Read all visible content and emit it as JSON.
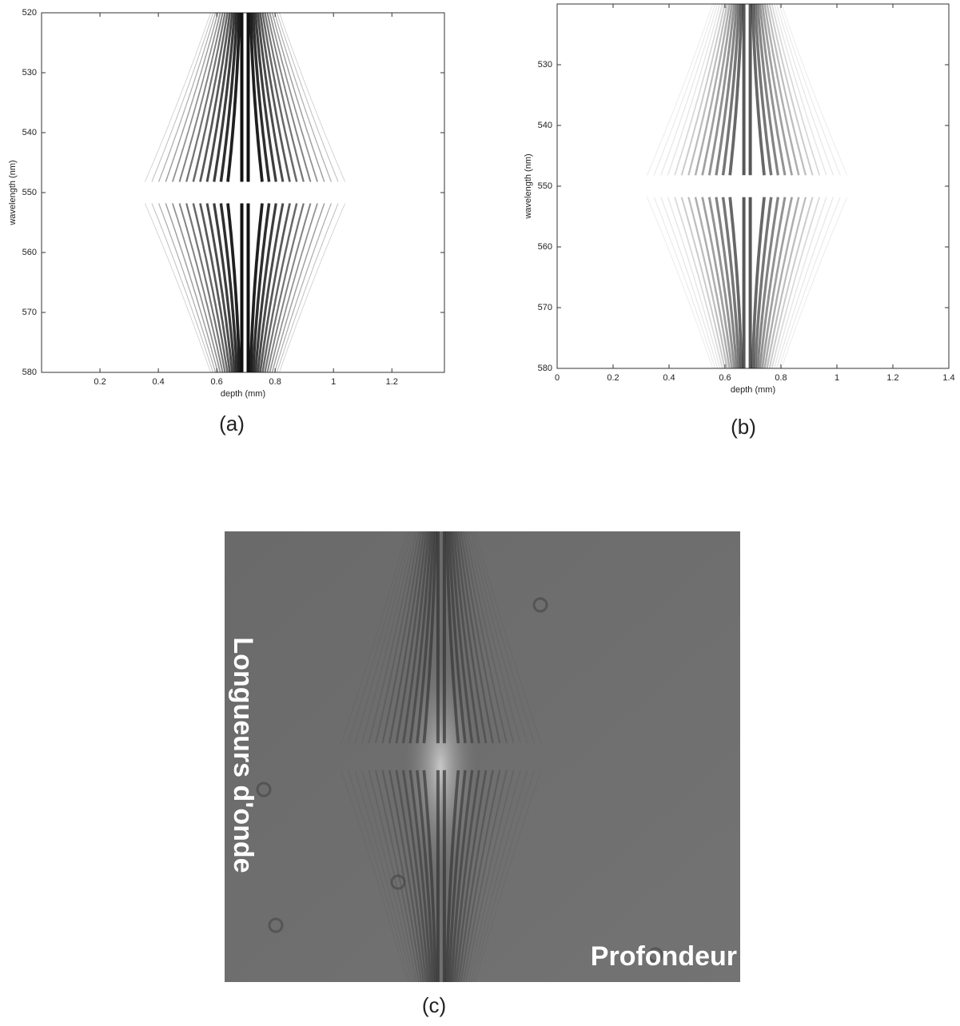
{
  "chart_data": [
    {
      "type": "image",
      "caption": "(a)",
      "xlabel": "depth (mm)",
      "ylabel": "wavelength (nm)",
      "xlim": [
        0,
        1.38
      ],
      "xticks": [
        0.2,
        0.4,
        0.6,
        0.8,
        1,
        1.2
      ],
      "ylim": [
        520,
        580
      ],
      "yticks": [
        520,
        530,
        540,
        550,
        560,
        570,
        580
      ],
      "y_inverted": true
    },
    {
      "type": "image",
      "caption": "(b)",
      "xlabel": "depth (mm)",
      "ylabel": "wavelength (nm)",
      "xlim": [
        0,
        1.4
      ],
      "xticks": [
        0,
        0.2,
        0.4,
        0.6,
        0.8,
        1,
        1.2,
        1.4
      ],
      "ylim": [
        520,
        580
      ],
      "yticks": [
        530,
        540,
        550,
        560,
        570,
        580
      ],
      "y_inverted": true
    },
    {
      "type": "photo",
      "caption": "(c)",
      "xlabel": "Profondeur",
      "ylabel": "Longueurs d'onde"
    }
  ]
}
